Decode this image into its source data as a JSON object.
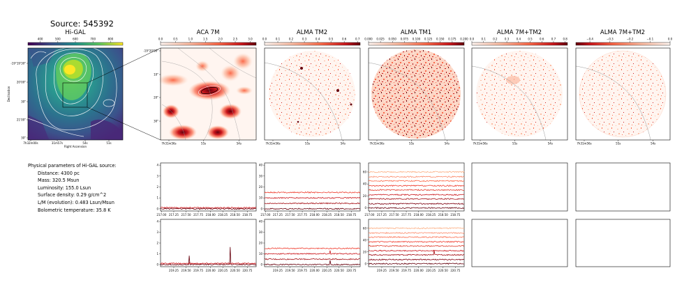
{
  "source_title": "Source: 545392",
  "params": {
    "heading": "Physical parameters of Hi-GAL source:",
    "lines": [
      "Distance: 4300 pc",
      "Mass: 320.5 Msun",
      "Luminosity: 155.0 Lsun",
      "Surface density: 0.29 g/cm^2",
      "L/M (evolution): 0.483 Lsun/Msun",
      "Bolometric temperature: 35.8 K"
    ]
  },
  "colors": {
    "viridis": [
      "#440154",
      "#3b528b",
      "#21918c",
      "#5ec962",
      "#fde725"
    ],
    "reds": [
      "#fff5f0",
      "#fcbba1",
      "#fb6a4a",
      "#cb181d",
      "#67000d"
    ]
  },
  "chart_data": [
    {
      "type": "heatmap",
      "title": "Hi-GAL",
      "colorbar_ticks": [
        "400",
        "500",
        "600",
        "700",
        "800"
      ],
      "clim": [
        330,
        870
      ],
      "xlabel": "Right Ascension",
      "ylabel": "Declination",
      "xticks": [
        "7h32m00s",
        "31m57s",
        "54s",
        "51s"
      ],
      "yticks": [
        "-19°19'30\"",
        "20'00\"",
        "30\"",
        "21'00\"",
        "30\""
      ]
    },
    {
      "type": "heatmap",
      "title": "ACA 7M",
      "colorbar_ticks": [
        "0.0",
        "0.5",
        "1.0",
        "1.5",
        "2.0",
        "2.5",
        "3.0"
      ],
      "clim": [
        0,
        3.2
      ],
      "xticks": [
        "7h31m56s",
        "55s",
        "54s"
      ],
      "yticks": [
        "-19°20'00\"",
        "10\"",
        "20\"",
        "30\""
      ]
    },
    {
      "type": "heatmap",
      "title": "ALMA TM2",
      "colorbar_ticks": [
        "0.0",
        "0.1",
        "0.2",
        "0.3",
        "0.4",
        "0.5",
        "0.6",
        "0.7"
      ],
      "clim": [
        0,
        0.72
      ],
      "xticks": [
        "7h31m56s",
        "55s",
        "54s"
      ]
    },
    {
      "type": "heatmap",
      "title": "ALMA TM1",
      "colorbar_ticks": [
        "0.000",
        "0.025",
        "0.050",
        "0.075",
        "0.100",
        "0.125",
        "0.150",
        "0.175",
        "0.200"
      ],
      "clim": [
        0,
        0.2
      ],
      "xticks": [
        "7h31m56s",
        "55s",
        "54s"
      ]
    },
    {
      "type": "heatmap",
      "title": "ALMA 7M+TM2",
      "colorbar_ticks": [
        "0.0",
        "0.1",
        "0.2",
        "0.3",
        "0.4",
        "0.5",
        "0.6",
        "0.7",
        "0.8"
      ],
      "clim": [
        0,
        0.82
      ],
      "xticks": [
        "7h31m56s",
        "55s",
        "54s"
      ]
    },
    {
      "type": "heatmap",
      "title": "ALMA 7M+TM2",
      "colorbar_ticks": [
        "−0.4",
        "−0.3",
        "−0.2",
        "−0.1",
        "0.0"
      ],
      "clim": [
        -0.47,
        0
      ],
      "xticks": [
        "7h31m56s",
        "55s",
        "54s"
      ]
    },
    {
      "type": "line",
      "panel": "ACA 7M upper spectrum",
      "yticks": [
        "0",
        "1",
        "2",
        "3",
        "4"
      ],
      "ylim": [
        -0.2,
        4.2
      ],
      "xticks": [
        "217.00",
        "217.25",
        "217.50",
        "217.75",
        "218.00",
        "218.25",
        "218.50",
        "218.75"
      ],
      "xlim": [
        216.98,
        218.93
      ],
      "series": [
        {
          "offset": 0,
          "color": "#67000d"
        },
        {
          "offset": 0.1,
          "color": "#cb181d"
        }
      ]
    },
    {
      "type": "line",
      "panel": "ALMA TM2 upper spectrum",
      "yticks": [
        "0",
        "10",
        "20",
        "30",
        "40"
      ],
      "ylim": [
        -2,
        42
      ],
      "xticks": [
        "217.00",
        "217.25",
        "217.50",
        "217.75",
        "218.00",
        "218.25",
        "218.50",
        "218.75"
      ],
      "xlim": [
        216.98,
        218.93
      ],
      "series": [
        {
          "offset": 0,
          "color": "#67000d"
        },
        {
          "offset": 5,
          "color": "#a50f15"
        },
        {
          "offset": 10,
          "color": "#cb181d"
        },
        {
          "offset": 15,
          "color": "#ef3b2c"
        }
      ]
    },
    {
      "type": "line",
      "panel": "ALMA TM1 upper spectrum",
      "yticks": [
        "0",
        "20",
        "40",
        "60"
      ],
      "ylim": [
        -5,
        75
      ],
      "xticks": [
        "217.00",
        "217.25",
        "217.50",
        "217.75",
        "218.00",
        "218.25",
        "218.50",
        "218.75"
      ],
      "xlim": [
        216.98,
        218.93
      ],
      "series": [
        {
          "offset": 0,
          "color": "#67000d"
        },
        {
          "offset": 7,
          "color": "#7f0010"
        },
        {
          "offset": 15,
          "color": "#a50f15"
        },
        {
          "offset": 22,
          "color": "#cb181d"
        },
        {
          "offset": 30,
          "color": "#e03f2f"
        },
        {
          "offset": 37,
          "color": "#ef3b2c"
        },
        {
          "offset": 45,
          "color": "#fb6a4a"
        },
        {
          "offset": 52,
          "color": "#fc8b6b"
        },
        {
          "offset": 60,
          "color": "#fcae82"
        }
      ]
    },
    {
      "type": "line",
      "panel": "ALMA 7M+TM2 upper spectrum (empty)",
      "series": []
    },
    {
      "type": "line",
      "panel": "ALMA 7M+TM2 upper spectrum 2 (empty)",
      "series": []
    },
    {
      "type": "line",
      "panel": "ACA 7M lower spectrum",
      "yticks": [
        "0",
        "1",
        "2",
        "3",
        "4"
      ],
      "ylim": [
        -0.2,
        4.2
      ],
      "xticks": [
        "219.25",
        "219.50",
        "219.75",
        "220.00",
        "220.25",
        "220.50",
        "220.75"
      ],
      "xlim": [
        218.98,
        220.93
      ],
      "series": [
        {
          "offset": 0,
          "color": "#67000d",
          "peaks": [
            [
              219.56,
              0.8
            ],
            [
              220.4,
              1.6
            ]
          ]
        },
        {
          "offset": 0.1,
          "color": "#cb181d"
        }
      ]
    },
    {
      "type": "line",
      "panel": "ALMA TM2 lower spectrum",
      "yticks": [
        "0",
        "10",
        "20",
        "30",
        "40"
      ],
      "ylim": [
        -2,
        42
      ],
      "xticks": [
        "219.25",
        "219.50",
        "219.75",
        "220.00",
        "220.25",
        "220.50",
        "220.75"
      ],
      "xlim": [
        218.98,
        220.93
      ],
      "series": [
        {
          "offset": 0,
          "color": "#67000d",
          "peaks": [
            [
              220.32,
              4
            ]
          ]
        },
        {
          "offset": 5,
          "color": "#a50f15"
        },
        {
          "offset": 10,
          "color": "#cb181d",
          "peaks": [
            [
              220.32,
              3
            ]
          ]
        },
        {
          "offset": 15,
          "color": "#ef3b2c"
        }
      ]
    },
    {
      "type": "line",
      "panel": "ALMA TM1 lower spectrum",
      "yticks": [
        "0",
        "20",
        "40",
        "60"
      ],
      "ylim": [
        -5,
        75
      ],
      "xticks": [
        "219.25",
        "219.50",
        "219.75",
        "220.00",
        "220.25",
        "220.50",
        "220.75"
      ],
      "xlim": [
        218.98,
        220.93
      ],
      "series": [
        {
          "offset": 0,
          "color": "#67000d"
        },
        {
          "offset": 7,
          "color": "#7f0010"
        },
        {
          "offset": 15,
          "color": "#a50f15",
          "peaks": [
            [
              220.32,
              8
            ]
          ]
        },
        {
          "offset": 22,
          "color": "#cb181d"
        },
        {
          "offset": 30,
          "color": "#e03f2f"
        },
        {
          "offset": 37,
          "color": "#ef3b2c"
        },
        {
          "offset": 45,
          "color": "#fb6a4a"
        },
        {
          "offset": 52,
          "color": "#fc8b6b"
        },
        {
          "offset": 60,
          "color": "#fcae82"
        }
      ]
    },
    {
      "type": "line",
      "panel": "ALMA 7M+TM2 lower spectrum (empty)",
      "series": []
    },
    {
      "type": "line",
      "panel": "ALMA 7M+TM2 lower spectrum 2 (empty)",
      "series": []
    }
  ]
}
